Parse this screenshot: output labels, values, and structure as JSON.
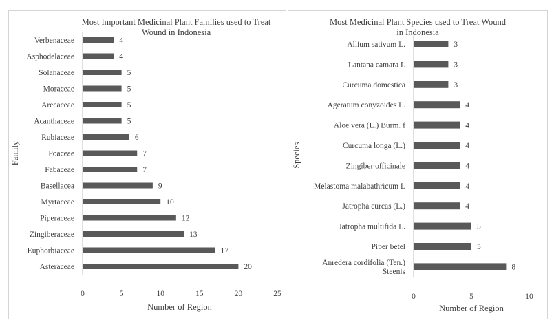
{
  "chart_data": [
    {
      "type": "bar",
      "orientation": "horizontal",
      "title": "Most Important Medicinal Plant Families used to Treat Wound in Indonesia",
      "title_lines": [
        "Most Important Medicinal Plant Families used to Treat",
        "Wound in Indonesia"
      ],
      "xlabel": "Number of Region",
      "ylabel": "Family",
      "xlim": [
        0,
        25
      ],
      "xticks": [
        0,
        5,
        10,
        15,
        20,
        25
      ],
      "grid": false,
      "bar_color": "#595959",
      "categories": [
        "Verbenaceae",
        "Asphodelaceae",
        "Solanaceae",
        "Moraceae",
        "Arecaceae",
        "Acanthaceae",
        "Rubiaceae",
        "Poaceae",
        "Fabaceae",
        "Basellacea",
        "Myrtaceae",
        "Piperaceae",
        "Zingiberaceae",
        "Euphorbiaceae",
        "Asteraceae"
      ],
      "values": [
        4,
        4,
        5,
        5,
        5,
        5,
        6,
        7,
        7,
        9,
        10,
        12,
        13,
        17,
        20
      ]
    },
    {
      "type": "bar",
      "orientation": "horizontal",
      "title": "Most Medicinal Plant Species used to Treat Wound in Indonesia",
      "title_lines": [
        "Most Medicinal Plant Species used to Treat Wound",
        "in Indonesia"
      ],
      "xlabel": "Number of Region",
      "ylabel": "Species",
      "xlim": [
        0,
        10
      ],
      "xticks": [
        0,
        5,
        10
      ],
      "grid": false,
      "bar_color": "#595959",
      "categories": [
        "Allium sativum L.",
        "Lantana camara L",
        "Curcuma domestica",
        "Ageratum conyzoides L.",
        "Aloe vera (L.) Burm. f",
        "Curcuma longa (L.)",
        "Zingiber officinale",
        "Melastoma malabathricum L",
        "Jatropha curcas (L.)",
        "Jatropha multifida L.",
        "Piper betel",
        "Anredera cordifolia (Ten.) Steenis"
      ],
      "category_lines": [
        [
          "Allium sativum L."
        ],
        [
          "Lantana camara L"
        ],
        [
          "Curcuma domestica"
        ],
        [
          "Ageratum conyzoides L."
        ],
        [
          "Aloe vera (L.) Burm. f"
        ],
        [
          "Curcuma longa (L.)"
        ],
        [
          "Zingiber officinale"
        ],
        [
          "Melastoma malabathricum L"
        ],
        [
          "Jatropha curcas (L.)"
        ],
        [
          "Jatropha multifida L."
        ],
        [
          "Piper betel"
        ],
        [
          "Anredera cordifolia (Ten.)",
          "Steenis"
        ]
      ],
      "values": [
        3,
        3,
        3,
        4,
        4,
        4,
        4,
        4,
        4,
        5,
        5,
        8
      ]
    }
  ]
}
